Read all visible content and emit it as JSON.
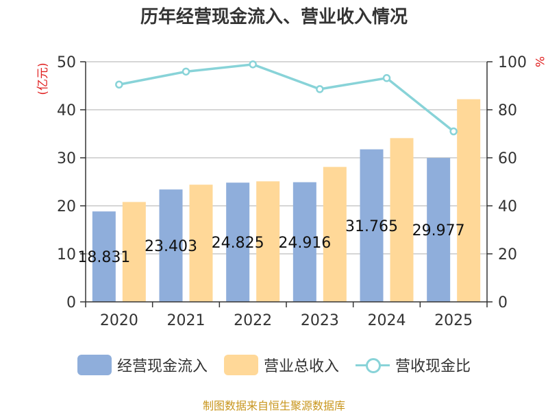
{
  "title": "历年经营现金流入、营业收入情况",
  "source_note": "制图数据来自恒生聚源数据库",
  "colors": {
    "cash_inflow": "#8faedb",
    "revenue": "#ffd898",
    "ratio": "#88d3d8",
    "left_unit": "#e02020",
    "right_unit": "#e02020"
  },
  "chart_data": {
    "type": "bar",
    "categories": [
      "2020",
      "2021",
      "2022",
      "2023",
      "2024",
      "2025"
    ],
    "y_left": {
      "label": "(亿元)",
      "range": [
        0,
        50
      ],
      "ticks": [
        "0",
        "10",
        "20",
        "30",
        "40",
        "50"
      ]
    },
    "y_right": {
      "label": "%",
      "range": [
        0,
        100
      ],
      "ticks": [
        "0",
        "20",
        "40",
        "60",
        "80",
        "100"
      ]
    },
    "grid": true,
    "legend_position": "bottom",
    "series": [
      {
        "name": "经营现金流入",
        "type": "bar",
        "axis": "left",
        "values": [
          18.831,
          23.403,
          24.825,
          24.916,
          31.765,
          29.977
        ],
        "data_labels": [
          "18.831",
          "23.403",
          "24.825",
          "24.916",
          "31.765",
          "29.977"
        ]
      },
      {
        "name": "营业总收入",
        "type": "bar",
        "axis": "left",
        "values": [
          20.8,
          24.4,
          25.1,
          28.1,
          34.1,
          42.2
        ]
      },
      {
        "name": "营收现金比",
        "type": "line",
        "axis": "right",
        "values": [
          90.5,
          95.9,
          98.9,
          88.6,
          93.2,
          71.0
        ]
      }
    ]
  }
}
